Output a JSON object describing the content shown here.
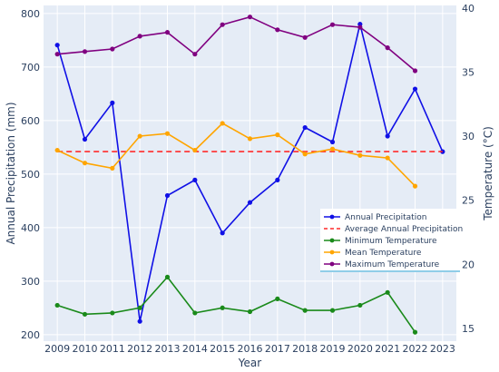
{
  "chart_data": {
    "type": "line",
    "title": "",
    "xlabel": "Year",
    "ylabel_left": "Annual Precipitation (mm)",
    "ylabel_right": "Temperature (°C)",
    "x": [
      2009,
      2010,
      2011,
      2012,
      2013,
      2014,
      2015,
      2016,
      2017,
      2018,
      2019,
      2020,
      2021,
      2022,
      2023
    ],
    "xlim": [
      2008.5,
      2023.5
    ],
    "ylim_left": [
      188,
      815
    ],
    "ylim_right": [
      14.0,
      40.2
    ],
    "y_ticks_left": [
      200,
      300,
      400,
      500,
      600,
      700,
      800
    ],
    "y_ticks_right": [
      15,
      20,
      25,
      30,
      35,
      40
    ],
    "grid": true,
    "legend_position": "right",
    "series": [
      {
        "name": "Annual Precipitation",
        "axis": "left",
        "color": "#1010e6",
        "dash": "solid",
        "marker": true,
        "values": [
          741,
          565,
          633,
          225,
          460,
          489,
          390,
          447,
          489,
          587,
          560,
          780,
          571,
          659,
          542
        ]
      },
      {
        "name": "Average Annual Precipitation",
        "axis": "left",
        "color": "#ff2a2a",
        "dash": "dashed",
        "marker": false,
        "values": [
          542,
          542,
          542,
          542,
          542,
          542,
          542,
          542,
          542,
          542,
          542,
          542,
          542,
          542,
          542
        ]
      },
      {
        "name": "Minimum Temperature",
        "axis": "right",
        "color": "#1a8a1a",
        "dash": "solid",
        "marker": true,
        "values": [
          16.8,
          16.1,
          16.2,
          16.6,
          19.0,
          16.2,
          16.6,
          16.3,
          17.3,
          16.4,
          16.4,
          16.8,
          17.8,
          14.7,
          null
        ]
      },
      {
        "name": "Mean Temperature",
        "axis": "right",
        "color": "#ffa500",
        "dash": "solid",
        "marker": true,
        "values": [
          28.9,
          27.9,
          27.5,
          30.0,
          30.2,
          28.9,
          31.0,
          29.8,
          30.1,
          28.6,
          29.0,
          28.5,
          28.3,
          26.1,
          null
        ]
      },
      {
        "name": "Maximum Temperature",
        "axis": "right",
        "color": "#800080",
        "dash": "solid",
        "marker": true,
        "values": [
          36.4,
          36.6,
          36.8,
          37.8,
          38.1,
          36.4,
          38.7,
          39.3,
          38.3,
          37.7,
          38.7,
          38.5,
          36.9,
          35.1,
          null
        ]
      }
    ]
  }
}
